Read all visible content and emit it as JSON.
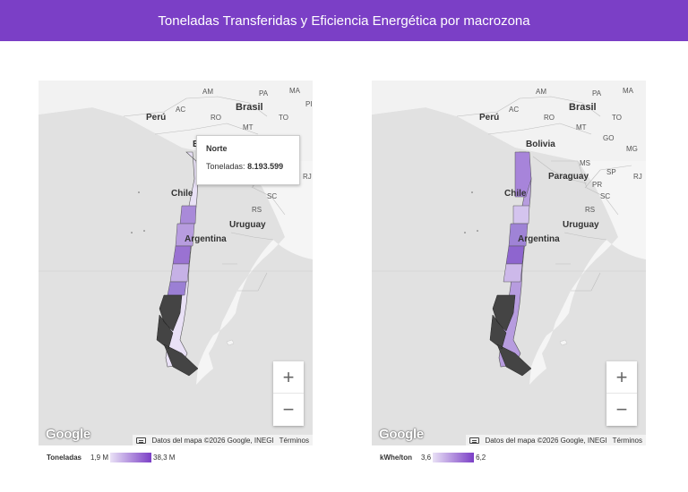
{
  "title": "Toneladas Transferidas y Eficiencia Energética por macrozona",
  "colors": {
    "header": "#7b3fc6",
    "scale_min": "#e9e1f6",
    "scale_max": "#7b3fc6"
  },
  "zoom_in_label": "+",
  "zoom_out_label": "−",
  "google_label": "Google",
  "attribution_text": "Datos del mapa ©2026 Google, INEGI",
  "terms_label": "Términos",
  "map1": {
    "countries": {
      "peru": "Perú",
      "brasil": "Brasil",
      "chile": "Chile",
      "argentina": "Argentina",
      "uruguay": "Uruguay",
      "bolivia_partial": "B"
    },
    "states": {
      "am": "AM",
      "pa": "PA",
      "ma": "MA",
      "pi": "PI",
      "ac": "AC",
      "ro": "RO",
      "to": "TO",
      "mt": "MT",
      "b": "B",
      "sc": "SC",
      "rs": "RS",
      "rj": "RJ"
    },
    "tooltip": {
      "title": "Norte",
      "label": "Toneladas:",
      "value": "8.193.599"
    },
    "legend": {
      "title": "Toneladas",
      "min": "1,9 M",
      "max": "38,3 M"
    }
  },
  "map2": {
    "countries": {
      "peru": "Perú",
      "brasil": "Brasil",
      "bolivia": "Bolivia",
      "paraguay": "Paraguay",
      "chile": "Chile",
      "argentina": "Argentina",
      "uruguay": "Uruguay"
    },
    "states": {
      "am": "AM",
      "pa": "PA",
      "ma": "MA",
      "ac": "AC",
      "ro": "RO",
      "to": "TO",
      "mt": "MT",
      "go": "GO",
      "mg": "MG",
      "ms": "MS",
      "sp": "SP",
      "pr": "PR",
      "rj": "RJ",
      "sc": "SC",
      "rs": "RS"
    },
    "legend": {
      "title": "kWhe/ton",
      "min": "3,6",
      "max": "6,2"
    }
  }
}
